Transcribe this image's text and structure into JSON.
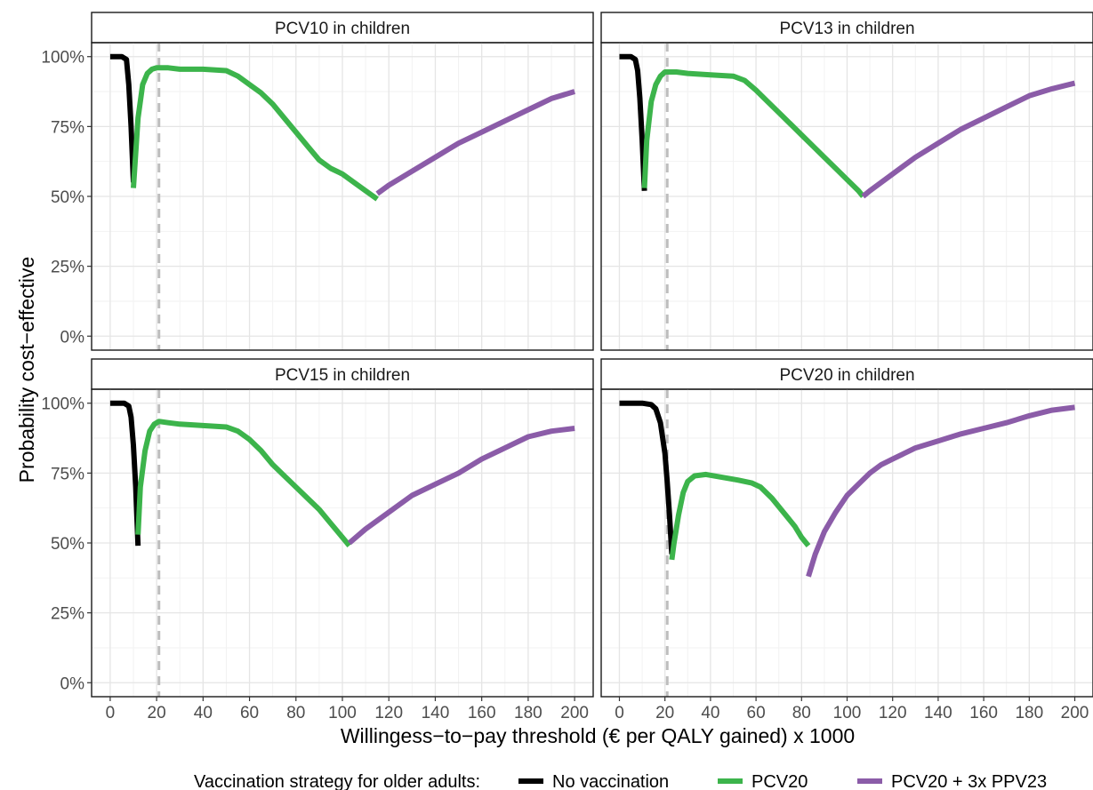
{
  "chart_data": {
    "type": "line",
    "layout": "facet-grid-2x2",
    "xlabel": "Willingess−to−pay threshold (€ per QALY gained) x 1000",
    "ylabel": "Probability cost−effective",
    "xlim": [
      -8,
      208
    ],
    "ylim": [
      -0.05,
      1.05
    ],
    "x_ticks": [
      0,
      20,
      40,
      60,
      80,
      100,
      120,
      140,
      160,
      180,
      200
    ],
    "y_ticks": [
      0,
      0.25,
      0.5,
      0.75,
      1.0
    ],
    "y_tick_labels": [
      "0%",
      "25%",
      "50%",
      "75%",
      "100%"
    ],
    "reference_line_x": 21,
    "reference_line_style": "dashed",
    "grid": true,
    "legend": {
      "title": "Vaccination strategy for older adults:",
      "position": "bottom",
      "entries": [
        {
          "name": "No vaccination",
          "color": "#000000"
        },
        {
          "name": "PCV20",
          "color": "#3cb44b"
        },
        {
          "name": "PCV20 + 3x PPV23",
          "color": "#8b5ca8"
        }
      ]
    },
    "panels": [
      {
        "title": "PCV10 in children",
        "series": [
          {
            "name": "No vaccination",
            "color": "#000000",
            "points": [
              [
                0,
                1.0
              ],
              [
                5,
                1.0
              ],
              [
                7,
                0.99
              ],
              [
                8,
                0.9
              ],
              [
                9,
                0.75
              ],
              [
                10,
                0.55
              ]
            ]
          },
          {
            "name": "PCV20",
            "color": "#3cb44b",
            "points": [
              [
                10,
                0.53
              ],
              [
                12,
                0.78
              ],
              [
                14,
                0.9
              ],
              [
                16,
                0.94
              ],
              [
                18,
                0.955
              ],
              [
                20,
                0.96
              ],
              [
                25,
                0.96
              ],
              [
                30,
                0.955
              ],
              [
                40,
                0.955
              ],
              [
                50,
                0.95
              ],
              [
                55,
                0.93
              ],
              [
                60,
                0.9
              ],
              [
                65,
                0.87
              ],
              [
                70,
                0.83
              ],
              [
                75,
                0.78
              ],
              [
                80,
                0.73
              ],
              [
                85,
                0.68
              ],
              [
                90,
                0.63
              ],
              [
                95,
                0.6
              ],
              [
                100,
                0.58
              ],
              [
                105,
                0.55
              ],
              [
                110,
                0.52
              ],
              [
                115,
                0.49
              ]
            ]
          },
          {
            "name": "PCV20 + 3x PPV23",
            "color": "#8b5ca8",
            "points": [
              [
                115,
                0.51
              ],
              [
                120,
                0.54
              ],
              [
                130,
                0.59
              ],
              [
                140,
                0.64
              ],
              [
                150,
                0.69
              ],
              [
                160,
                0.73
              ],
              [
                170,
                0.77
              ],
              [
                180,
                0.81
              ],
              [
                190,
                0.85
              ],
              [
                200,
                0.875
              ]
            ]
          }
        ]
      },
      {
        "title": "PCV13 in children",
        "series": [
          {
            "name": "No vaccination",
            "color": "#000000",
            "points": [
              [
                0,
                1.0
              ],
              [
                5,
                1.0
              ],
              [
                7,
                0.99
              ],
              [
                8,
                0.95
              ],
              [
                9,
                0.85
              ],
              [
                10,
                0.7
              ],
              [
                11,
                0.52
              ]
            ]
          },
          {
            "name": "PCV20",
            "color": "#3cb44b",
            "points": [
              [
                11,
                0.53
              ],
              [
                12,
                0.7
              ],
              [
                14,
                0.84
              ],
              [
                16,
                0.9
              ],
              [
                18,
                0.93
              ],
              [
                20,
                0.945
              ],
              [
                25,
                0.945
              ],
              [
                30,
                0.94
              ],
              [
                40,
                0.935
              ],
              [
                50,
                0.93
              ],
              [
                55,
                0.915
              ],
              [
                60,
                0.88
              ],
              [
                65,
                0.84
              ],
              [
                70,
                0.8
              ],
              [
                75,
                0.76
              ],
              [
                80,
                0.72
              ],
              [
                85,
                0.68
              ],
              [
                90,
                0.64
              ],
              [
                95,
                0.6
              ],
              [
                100,
                0.56
              ],
              [
                105,
                0.52
              ],
              [
                107,
                0.5
              ]
            ]
          },
          {
            "name": "PCV20 + 3x PPV23",
            "color": "#8b5ca8",
            "points": [
              [
                107,
                0.5
              ],
              [
                110,
                0.52
              ],
              [
                120,
                0.58
              ],
              [
                130,
                0.64
              ],
              [
                140,
                0.69
              ],
              [
                150,
                0.74
              ],
              [
                160,
                0.78
              ],
              [
                170,
                0.82
              ],
              [
                180,
                0.86
              ],
              [
                190,
                0.885
              ],
              [
                200,
                0.905
              ]
            ]
          }
        ]
      },
      {
        "title": "PCV15 in children",
        "series": [
          {
            "name": "No vaccination",
            "color": "#000000",
            "points": [
              [
                0,
                1.0
              ],
              [
                6,
                1.0
              ],
              [
                8,
                0.99
              ],
              [
                9,
                0.95
              ],
              [
                10,
                0.85
              ],
              [
                11,
                0.7
              ],
              [
                12,
                0.49
              ]
            ]
          },
          {
            "name": "PCV20",
            "color": "#3cb44b",
            "points": [
              [
                12,
                0.53
              ],
              [
                13,
                0.7
              ],
              [
                15,
                0.83
              ],
              [
                17,
                0.9
              ],
              [
                19,
                0.925
              ],
              [
                21,
                0.935
              ],
              [
                25,
                0.93
              ],
              [
                30,
                0.925
              ],
              [
                40,
                0.92
              ],
              [
                50,
                0.915
              ],
              [
                55,
                0.9
              ],
              [
                60,
                0.87
              ],
              [
                65,
                0.83
              ],
              [
                70,
                0.78
              ],
              [
                75,
                0.74
              ],
              [
                80,
                0.7
              ],
              [
                85,
                0.66
              ],
              [
                90,
                0.62
              ],
              [
                95,
                0.57
              ],
              [
                100,
                0.52
              ],
              [
                103,
                0.49
              ]
            ]
          },
          {
            "name": "PCV20 + 3x PPV23",
            "color": "#8b5ca8",
            "points": [
              [
                103,
                0.5
              ],
              [
                110,
                0.55
              ],
              [
                120,
                0.61
              ],
              [
                130,
                0.67
              ],
              [
                140,
                0.71
              ],
              [
                150,
                0.75
              ],
              [
                160,
                0.8
              ],
              [
                170,
                0.84
              ],
              [
                180,
                0.88
              ],
              [
                190,
                0.9
              ],
              [
                200,
                0.91
              ]
            ]
          }
        ]
      },
      {
        "title": "PCV20 in children",
        "series": [
          {
            "name": "No vaccination",
            "color": "#000000",
            "points": [
              [
                0,
                1.0
              ],
              [
                10,
                1.0
              ],
              [
                14,
                0.995
              ],
              [
                16,
                0.98
              ],
              [
                18,
                0.93
              ],
              [
                20,
                0.82
              ],
              [
                21,
                0.72
              ],
              [
                22,
                0.6
              ],
              [
                23,
                0.46
              ]
            ]
          },
          {
            "name": "PCV20",
            "color": "#3cb44b",
            "points": [
              [
                23,
                0.44
              ],
              [
                24,
                0.5
              ],
              [
                26,
                0.6
              ],
              [
                28,
                0.68
              ],
              [
                30,
                0.72
              ],
              [
                33,
                0.74
              ],
              [
                38,
                0.745
              ],
              [
                45,
                0.735
              ],
              [
                52,
                0.725
              ],
              [
                58,
                0.715
              ],
              [
                62,
                0.7
              ],
              [
                67,
                0.66
              ],
              [
                72,
                0.61
              ],
              [
                77,
                0.56
              ],
              [
                80,
                0.52
              ],
              [
                83,
                0.49
              ]
            ]
          },
          {
            "name": "PCV20 + 3x PPV23",
            "color": "#8b5ca8",
            "points": [
              [
                83,
                0.38
              ],
              [
                86,
                0.46
              ],
              [
                90,
                0.54
              ],
              [
                95,
                0.61
              ],
              [
                100,
                0.67
              ],
              [
                105,
                0.71
              ],
              [
                110,
                0.75
              ],
              [
                115,
                0.78
              ],
              [
                120,
                0.8
              ],
              [
                130,
                0.84
              ],
              [
                140,
                0.865
              ],
              [
                150,
                0.89
              ],
              [
                160,
                0.91
              ],
              [
                170,
                0.93
              ],
              [
                180,
                0.955
              ],
              [
                190,
                0.975
              ],
              [
                200,
                0.985
              ]
            ]
          }
        ]
      }
    ]
  }
}
